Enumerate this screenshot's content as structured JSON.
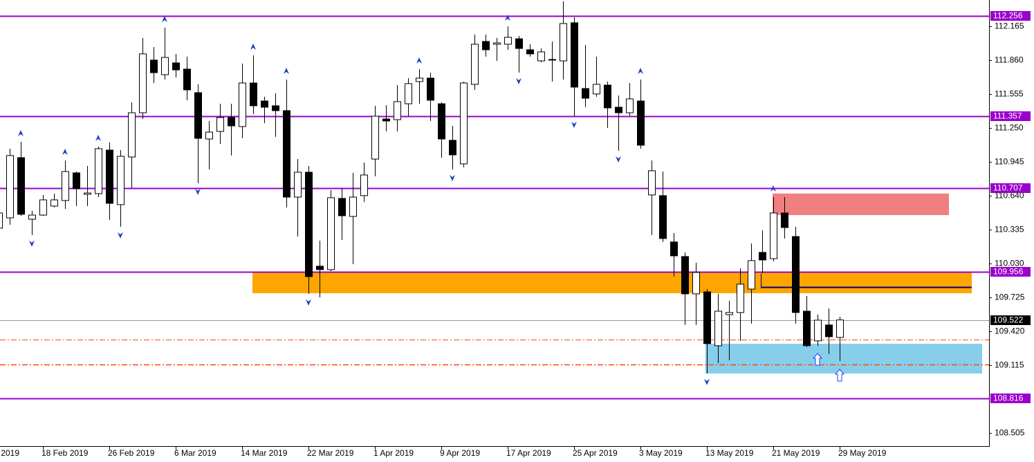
{
  "chart_data": {
    "type": "candlestick",
    "categories": [
      "2019",
      null,
      null,
      null,
      null,
      null,
      "18 Feb 2019",
      null,
      null,
      null,
      null,
      null,
      "26 Feb 2019",
      null,
      null,
      null,
      null,
      null,
      "6 Mar 2019",
      null,
      null,
      null,
      null,
      null,
      "14 Mar 2019",
      null,
      null,
      null,
      null,
      null,
      "22 Mar 2019",
      null,
      null,
      null,
      null,
      null,
      "1 Apr 2019",
      null,
      null,
      null,
      null,
      null,
      "9 Apr 2019",
      null,
      null,
      null,
      null,
      null,
      "17 Apr 2019",
      null,
      null,
      null,
      null,
      null,
      "25 Apr 2019",
      null,
      null,
      null,
      null,
      null,
      "3 May 2019",
      null,
      null,
      null,
      null,
      null,
      "13 May 2019",
      null,
      null,
      null,
      null,
      null,
      "21 May 2019",
      null,
      null,
      null,
      null,
      null,
      "29 May 2019"
    ],
    "open": [
      null,
      null,
      110.348,
      110.441,
      110.983,
      110.429,
      110.466,
      110.547,
      110.597,
      110.846,
      110.653,
      110.659,
      111.051,
      110.56,
      110.989,
      111.387,
      111.861,
      111.73,
      111.836,
      111.78,
      111.568,
      111.151,
      111.219,
      111.344,
      111.263,
      111.655,
      111.493,
      111.45,
      111.406,
      110.628,
      110.852,
      110.006,
      109.975,
      110.616,
      110.454,
      110.641,
      110.97,
      111.331,
      111.325,
      111.468,
      111.668,
      111.699,
      111.468,
      111.139,
      110.927,
      111.643,
      112.029,
      112.004,
      112.004,
      112.053,
      111.954,
      111.854,
      111.867,
      111.854,
      112.197,
      111.605,
      111.556,
      111.636,
      111.437,
      111.387,
      111.493,
      110.647,
      110.641,
      110.224,
      110.093,
      109.757,
      109.775,
      109.29,
      109.57,
      109.589,
      109.8,
      110.13,
      110.074,
      110.485,
      110.273,
      109.601,
      109.334,
      109.477,
      109.365
    ],
    "high": [
      null,
      null,
      110.535,
      111.064,
      111.126,
      110.504,
      110.647,
      110.659,
      110.958,
      110.858,
      110.908,
      111.083,
      111.12,
      111.051,
      111.481,
      112.06,
      111.979,
      112.153,
      111.917,
      111.892,
      111.643,
      111.313,
      111.468,
      111.468,
      111.829,
      111.904,
      111.531,
      111.562,
      111.686,
      110.97,
      110.908,
      110.236,
      110.69,
      110.709,
      110.846,
      110.939,
      111.45,
      111.456,
      111.636,
      111.699,
      111.78,
      111.748,
      111.481,
      111.269,
      111.668,
      112.091,
      112.091,
      112.06,
      112.165,
      112.078,
      112.004,
      111.966,
      112.029,
      112.39,
      112.246,
      111.997,
      111.892,
      111.668,
      111.543,
      111.655,
      111.686,
      110.958,
      110.858,
      110.304,
      110.13,
      110.037,
      109.8,
      109.757,
      109.695,
      109.987,
      110.211,
      110.329,
      110.628,
      110.628,
      110.361,
      109.738,
      109.57,
      109.626,
      109.551
    ],
    "low": [
      null,
      null,
      110.317,
      110.379,
      110.46,
      110.286,
      110.46,
      110.535,
      110.522,
      110.547,
      110.547,
      110.628,
      110.423,
      110.361,
      110.709,
      111.331,
      111.655,
      111.686,
      111.705,
      111.5,
      110.753,
      110.877,
      111.107,
      111.002,
      111.157,
      111.375,
      111.294,
      111.17,
      110.535,
      110.273,
      109.757,
      109.726,
      109.962,
      110.242,
      110.024,
      110.585,
      110.815,
      111.219,
      111.219,
      111.356,
      111.468,
      111.313,
      110.983,
      110.877,
      110.896,
      111.593,
      111.892,
      111.854,
      111.954,
      111.748,
      111.892,
      111.842,
      111.668,
      111.686,
      111.356,
      111.437,
      111.531,
      111.251,
      111.045,
      111.356,
      111.064,
      110.286,
      110.224,
      109.912,
      109.477,
      109.477,
      109.041,
      109.134,
      109.159,
      109.334,
      109.489,
      109.944,
      110.049,
      110.255,
      109.489,
      109.278,
      109.29,
      109.215,
      109.153
    ],
    "close": [
      null,
      null,
      110.485,
      111.002,
      110.473,
      110.466,
      110.603,
      110.603,
      110.858,
      110.703,
      110.665,
      111.064,
      110.572,
      110.995,
      111.387,
      111.917,
      111.748,
      111.885,
      111.773,
      111.593,
      111.157,
      111.213,
      111.344,
      111.269,
      111.655,
      111.45,
      111.437,
      111.406,
      110.628,
      110.852,
      109.912,
      109.975,
      110.622,
      110.46,
      110.628,
      110.827,
      111.356,
      111.313,
      111.487,
      111.649,
      111.699,
      111.5,
      111.151,
      111.008,
      111.655,
      112.004,
      111.954,
      112.016,
      112.066,
      111.966,
      111.917,
      111.935,
      111.861,
      112.19,
      111.618,
      111.518,
      111.643,
      111.431,
      111.387,
      111.512,
      111.095,
      110.865,
      110.255,
      110.099,
      109.757,
      109.95,
      109.309,
      109.601,
      109.589,
      109.844,
      110.056,
      110.062,
      110.485,
      110.354,
      109.589,
      109.29,
      109.52,
      109.371,
      109.522
    ],
    "ylim": [
      108.368,
      112.402
    ],
    "yticks": [
      112.165,
      {
        "value": 111.86,
        "label": "111.860"
      },
      111.555,
      {
        "value": 111.25,
        "label": "111.250"
      },
      110.945,
      {
        "value": 110.64,
        "label": "110.640"
      },
      110.335,
      {
        "value": 110.03,
        "label": "110.030"
      },
      109.725,
      {
        "value": 109.42,
        "label": "109.420"
      },
      109.115,
      108.505
    ],
    "price_levels": [
      {
        "value": 112.256,
        "color": "#9900cc"
      },
      {
        "value": 111.357,
        "color": "#9900cc"
      },
      {
        "value": 110.707,
        "color": "#9900cc"
      },
      {
        "value": 109.956,
        "color": "#9900cc"
      },
      {
        "value": 108.816,
        "color": "#9900cc"
      }
    ],
    "current_price": 109.522,
    "dashed_levels": [
      109.345,
      109.121
    ],
    "dashed_color": "#ff4500",
    "trend_level": 109.818,
    "trend_color": "#000080",
    "zones": [
      {
        "low": 109.763,
        "high": 109.956,
        "color": "#ffa500"
      },
      {
        "low": 109.04,
        "high": 109.308,
        "color": "#87ceeb"
      },
      {
        "low": 110.466,
        "high": 110.66,
        "color": "#f08080"
      }
    ]
  }
}
